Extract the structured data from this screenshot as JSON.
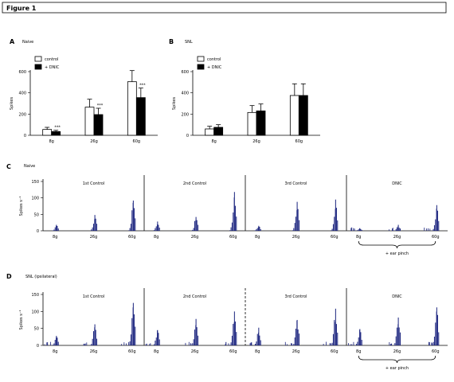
{
  "figure_title": "Figure 1",
  "chart_data": [
    {
      "type": "bar",
      "panel": "A",
      "subtitle": "Naive",
      "categories": [
        "8g",
        "26g",
        "60g"
      ],
      "ylabel": "Spikes",
      "ylim": [
        0,
        600
      ],
      "yticks": [
        0,
        200,
        400,
        600
      ],
      "series": [
        {
          "name": "control",
          "color": "#ffffff",
          "values": [
            55,
            265,
            505
          ],
          "errors": [
            20,
            75,
            105
          ]
        },
        {
          "name": "+ DNIC",
          "color": "#000000",
          "values": [
            35,
            195,
            355
          ],
          "errors": [
            12,
            60,
            90
          ]
        }
      ],
      "annotations": [
        "***",
        "***",
        "***"
      ]
    },
    {
      "type": "bar",
      "panel": "B",
      "subtitle": "SNL",
      "categories": [
        "8g",
        "26g",
        "60g"
      ],
      "ylabel": "Spikes",
      "ylim": [
        0,
        600
      ],
      "yticks": [
        0,
        200,
        400,
        600
      ],
      "series": [
        {
          "name": "control",
          "color": "#ffffff",
          "values": [
            60,
            215,
            375
          ],
          "errors": [
            25,
            65,
            110
          ]
        },
        {
          "name": "+ DNIC",
          "color": "#000000",
          "values": [
            75,
            230,
            375
          ],
          "errors": [
            25,
            65,
            110
          ]
        }
      ],
      "annotations": []
    },
    {
      "type": "histogram",
      "panel": "C",
      "subtitle": "Naive",
      "ylabel": "Spikes s⁻¹",
      "ylim": [
        0,
        150
      ],
      "yticks": [
        0,
        50,
        100,
        150
      ],
      "color": "#1a237e",
      "separator_style": "solid",
      "segments": [
        {
          "label": "1st Control",
          "peaks": [
            {
              "x": "8g",
              "value": 18
            },
            {
              "x": "26g",
              "value": 48
            },
            {
              "x": "60g",
              "value": 92
            }
          ]
        },
        {
          "label": "2nd Control",
          "peaks": [
            {
              "x": "8g",
              "value": 28
            },
            {
              "x": "26g",
              "value": 42
            },
            {
              "x": "60g",
              "value": 118
            }
          ]
        },
        {
          "label": "3rd Control",
          "peaks": [
            {
              "x": "8g",
              "value": 15
            },
            {
              "x": "26g",
              "value": 88
            },
            {
              "x": "60g",
              "value": 95
            }
          ]
        },
        {
          "label": "DNIC",
          "peaks": [
            {
              "x": "8g",
              "value": 8
            },
            {
              "x": "26g",
              "value": 18
            },
            {
              "x": "60g",
              "value": 78
            }
          ]
        }
      ],
      "brace_label": "+ ear pinch"
    },
    {
      "type": "histogram",
      "panel": "D",
      "subtitle": "SNL (ipsilateral)",
      "ylabel": "Spikes s⁻¹",
      "ylim": [
        0,
        150
      ],
      "yticks": [
        0,
        50,
        100,
        150
      ],
      "color": "#1a237e",
      "separator_style": "mixed",
      "segments": [
        {
          "label": "1st Control",
          "peaks": [
            {
              "x": "8g",
              "value": 28
            },
            {
              "x": "26g",
              "value": 62
            },
            {
              "x": "60g",
              "value": 125
            }
          ]
        },
        {
          "label": "2nd Control",
          "peaks": [
            {
              "x": "8g",
              "value": 45
            },
            {
              "x": "26g",
              "value": 78
            },
            {
              "x": "60g",
              "value": 100
            }
          ]
        },
        {
          "label": "3rd Control",
          "peaks": [
            {
              "x": "8g",
              "value": 52
            },
            {
              "x": "26g",
              "value": 75
            },
            {
              "x": "60g",
              "value": 108
            }
          ]
        },
        {
          "label": "DNIC",
          "peaks": [
            {
              "x": "8g",
              "value": 48
            },
            {
              "x": "26g",
              "value": 82
            },
            {
              "x": "60g",
              "value": 112
            }
          ]
        }
      ],
      "brace_label": "+ ear pinch"
    }
  ]
}
